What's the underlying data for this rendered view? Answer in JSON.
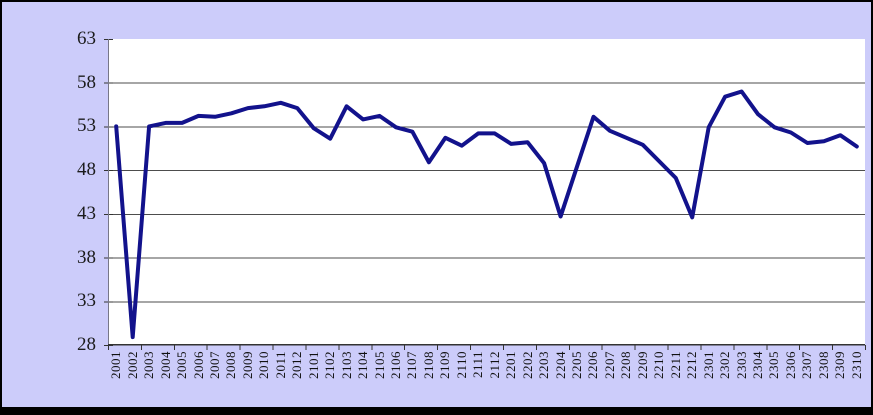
{
  "window": {
    "background_color": "#CCCCFA",
    "border_color": "#000000"
  },
  "chart_data": {
    "type": "line",
    "title": "",
    "xlabel": "",
    "ylabel": "",
    "categories": [
      "2001",
      "2002",
      "2003",
      "2004",
      "2005",
      "2006",
      "2007",
      "2008",
      "2009",
      "2010",
      "2011",
      "2012",
      "2101",
      "2102",
      "2103",
      "2104",
      "2105",
      "2106",
      "2107",
      "2108",
      "2109",
      "2110",
      "2111",
      "2112",
      "2201",
      "2202",
      "2203",
      "2204",
      "2205",
      "2206",
      "2207",
      "2208",
      "2209",
      "2210",
      "2211",
      "2212",
      "2301",
      "2302",
      "2303",
      "2304",
      "2305",
      "2306",
      "2307",
      "2308",
      "2309",
      "2310"
    ],
    "values": [
      53.0,
      28.9,
      53.0,
      53.4,
      53.4,
      54.2,
      54.1,
      54.5,
      55.1,
      55.3,
      55.7,
      55.1,
      52.8,
      51.6,
      55.3,
      53.8,
      54.2,
      52.9,
      52.4,
      48.9,
      51.7,
      50.8,
      52.2,
      52.2,
      51.0,
      51.2,
      48.8,
      42.7,
      48.4,
      54.1,
      52.5,
      51.7,
      50.9,
      49.0,
      47.1,
      42.6,
      52.9,
      56.4,
      57.0,
      54.4,
      52.9,
      52.3,
      51.1,
      51.3,
      52.0,
      50.7
    ],
    "ylim": [
      28,
      63
    ],
    "yticks": [
      63,
      58,
      53,
      48,
      43,
      38,
      33,
      28
    ],
    "x_tick_every": 2,
    "grid": true,
    "legend": false,
    "line_color": "#12128C",
    "plot_background": "#FFFFFF",
    "gridline_color": "#4D4D4D",
    "axis_color": "#333333"
  }
}
